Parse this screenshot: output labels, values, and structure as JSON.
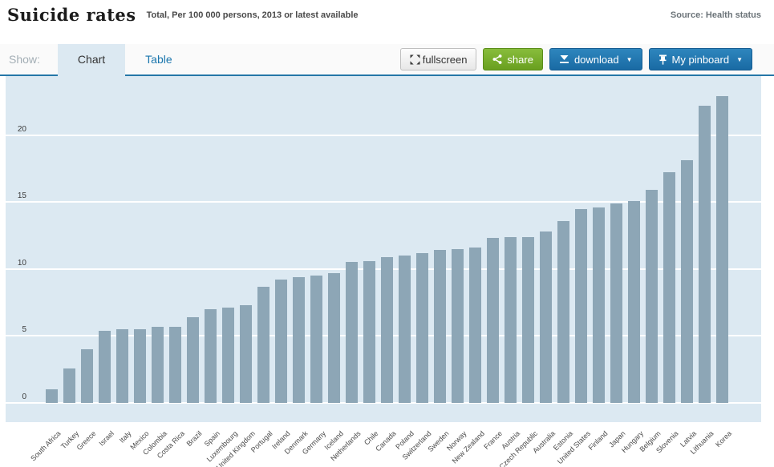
{
  "header": {
    "title": "Suicide rates",
    "subtitle": "Total, Per 100 000 persons, 2013 or latest available",
    "source": "Source: Health status"
  },
  "toolbar": {
    "show_label": "Show:",
    "tab_chart": "Chart",
    "tab_table": "Table",
    "fullscreen_label": "fullscreen",
    "share_label": "share",
    "download_label": "download",
    "pinboard_label": "My pinboard",
    "caret": "▼"
  },
  "colors": {
    "accent_blue": "#2577a8",
    "button_blue": "#1d72aa",
    "button_green": "#76ab2d",
    "plot_background": "#dce9f2",
    "bar_color": "#8da6b6",
    "gridline": "#ffffff"
  },
  "chart_data": {
    "type": "bar",
    "title": "Suicide rates",
    "subtitle": "Total, Per 100 000 persons, 2013 or latest available",
    "unit": "Per 100 000 persons",
    "categories": [
      "South Africa",
      "Turkey",
      "Greece",
      "Israel",
      "Italy",
      "Mexico",
      "Colombia",
      "Costa Rica",
      "Brazil",
      "Spain",
      "Luxembourg",
      "United Kingdom",
      "Portugal",
      "Ireland",
      "Denmark",
      "Germany",
      "Iceland",
      "Netherlands",
      "Chile",
      "Canada",
      "Poland",
      "Switzerland",
      "Sweden",
      "Norway",
      "New Zealand",
      "France",
      "Austria",
      "Czech Republic",
      "Australia",
      "Estonia",
      "United States",
      "Finland",
      "Japan",
      "Hungary",
      "Belgium",
      "Slovenia",
      "Latvia",
      "Lithuania",
      "Korea"
    ],
    "values": [
      1.0,
      2.6,
      4.0,
      5.4,
      5.5,
      5.5,
      5.7,
      5.7,
      6.4,
      7.0,
      7.1,
      7.3,
      8.7,
      9.2,
      9.4,
      9.5,
      9.7,
      10.5,
      10.6,
      10.9,
      11.0,
      11.2,
      11.4,
      11.5,
      11.6,
      12.3,
      12.4,
      12.4,
      12.8,
      13.6,
      14.5,
      14.6,
      14.9,
      15.1,
      15.9,
      17.2,
      18.1,
      22.2,
      22.9
    ],
    "yticks": [
      0,
      5,
      10,
      15,
      20
    ],
    "ylim": [
      0,
      24.4
    ],
    "grid": true,
    "legend": "none",
    "xlabel": "",
    "ylabel": ""
  }
}
